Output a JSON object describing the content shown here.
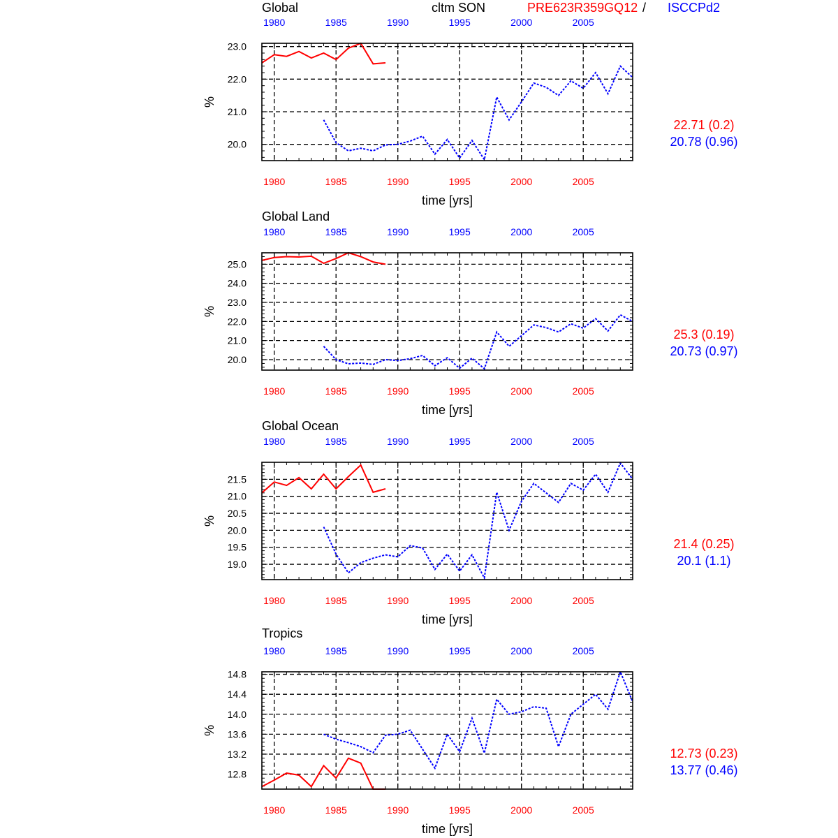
{
  "header": {
    "panel_title_0": "Global",
    "variable": "cltm SON",
    "model_name": "PRE623R359GQ12",
    "separator": "/",
    "obs_name": "ISCCPd2"
  },
  "colors": {
    "model": "#ff0000",
    "obs": "#0000ff",
    "axis": "#000000"
  },
  "xaxis": {
    "label": "time [yrs]",
    "ticks": [
      1980,
      1985,
      1990,
      1995,
      2000,
      2005
    ],
    "range": [
      1979,
      2009
    ]
  },
  "chart_data": [
    {
      "type": "line",
      "title": "Global",
      "ylabel": "%",
      "xlabel": "time [yrs]",
      "ylim": [
        19.5,
        23.1
      ],
      "yticks": [
        20.0,
        21.0,
        22.0,
        23.0
      ],
      "ytick_labels": [
        "20.0",
        "21.0",
        "22.0",
        "23.0"
      ],
      "grid": true,
      "series": [
        {
          "name": "PRE623R359GQ12",
          "style": "solid",
          "color": "#ff0000",
          "x": [
            1979,
            1980,
            1981,
            1982,
            1983,
            1984,
            1985,
            1986,
            1987,
            1988,
            1989
          ],
          "values": [
            22.5,
            22.75,
            22.7,
            22.85,
            22.65,
            22.8,
            22.6,
            22.95,
            23.1,
            22.47,
            22.5
          ]
        },
        {
          "name": "ISCCPd2",
          "style": "dashed",
          "color": "#0000ff",
          "x": [
            1984,
            1985,
            1986,
            1987,
            1988,
            1989,
            1990,
            1991,
            1992,
            1993,
            1994,
            1995,
            1996,
            1997,
            1998,
            1999,
            2000,
            2001,
            2002,
            2003,
            2004,
            2005,
            2006,
            2007,
            2008,
            2009
          ],
          "values": [
            20.75,
            20.05,
            19.8,
            19.88,
            19.8,
            19.98,
            20.0,
            20.1,
            20.25,
            19.7,
            20.15,
            19.58,
            20.12,
            19.53,
            21.45,
            20.75,
            21.3,
            21.88,
            21.75,
            21.5,
            21.95,
            21.72,
            22.2,
            21.55,
            22.4,
            22.05
          ]
        }
      ],
      "stats": {
        "model": "22.71 (0.2)",
        "obs": "20.78 (0.96)"
      }
    },
    {
      "type": "line",
      "title": "Global Land",
      "ylabel": "%",
      "xlabel": "time [yrs]",
      "ylim": [
        19.45,
        25.6
      ],
      "yticks": [
        20.0,
        21.0,
        22.0,
        23.0,
        24.0,
        25.0
      ],
      "ytick_labels": [
        "20.0",
        "21.0",
        "22.0",
        "23.0",
        "24.0",
        "25.0"
      ],
      "grid": true,
      "series": [
        {
          "name": "PRE623R359GQ12",
          "style": "solid",
          "color": "#ff0000",
          "x": [
            1979,
            1980,
            1981,
            1982,
            1983,
            1984,
            1985,
            1986,
            1987,
            1988,
            1989
          ],
          "values": [
            25.2,
            25.35,
            25.4,
            25.38,
            25.42,
            25.05,
            25.3,
            25.6,
            25.4,
            25.12,
            25.0
          ]
        },
        {
          "name": "ISCCPd2",
          "style": "dashed",
          "color": "#0000ff",
          "x": [
            1984,
            1985,
            1986,
            1987,
            1988,
            1989,
            1990,
            1991,
            1992,
            1993,
            1994,
            1995,
            1996,
            1997,
            1998,
            1999,
            2000,
            2001,
            2002,
            2003,
            2004,
            2005,
            2006,
            2007,
            2008,
            2009
          ],
          "values": [
            20.7,
            20.0,
            19.78,
            19.82,
            19.75,
            20.0,
            19.95,
            20.05,
            20.22,
            19.68,
            20.1,
            19.55,
            20.08,
            19.52,
            21.45,
            20.7,
            21.25,
            21.82,
            21.68,
            21.45,
            21.88,
            21.65,
            22.15,
            21.5,
            22.35,
            22.0
          ]
        }
      ],
      "stats": {
        "model": "25.3 (0.19)",
        "obs": "20.73 (0.97)"
      }
    },
    {
      "type": "line",
      "title": "Global Ocean",
      "ylabel": "%",
      "xlabel": "time [yrs]",
      "ylim": [
        18.55,
        22.0
      ],
      "yticks": [
        19.0,
        19.5,
        20.0,
        20.5,
        21.0,
        21.5
      ],
      "ytick_labels": [
        "19.0",
        "19.5",
        "20.0",
        "20.5",
        "21.0",
        "21.5"
      ],
      "grid": true,
      "series": [
        {
          "name": "PRE623R359GQ12",
          "style": "solid",
          "color": "#ff0000",
          "x": [
            1979,
            1980,
            1981,
            1982,
            1983,
            1984,
            1985,
            1986,
            1987,
            1988,
            1989
          ],
          "values": [
            21.1,
            21.42,
            21.32,
            21.55,
            21.22,
            21.65,
            21.22,
            21.58,
            21.92,
            21.12,
            21.22
          ]
        },
        {
          "name": "ISCCPd2",
          "style": "dashed",
          "color": "#0000ff",
          "x": [
            1984,
            1985,
            1986,
            1987,
            1988,
            1989,
            1990,
            1991,
            1992,
            1993,
            1994,
            1995,
            1996,
            1997,
            1998,
            1999,
            2000,
            2001,
            2002,
            2003,
            2004,
            2005,
            2006,
            2007,
            2008,
            2009
          ],
          "values": [
            20.1,
            19.3,
            18.75,
            19.05,
            19.18,
            19.28,
            19.22,
            19.55,
            19.48,
            18.85,
            19.3,
            18.8,
            19.28,
            18.6,
            21.12,
            20.0,
            20.85,
            21.38,
            21.1,
            20.82,
            21.38,
            21.18,
            21.65,
            21.12,
            21.98,
            21.5
          ]
        }
      ],
      "stats": {
        "model": "21.4 (0.25)",
        "obs": "20.1 (1.1)"
      }
    },
    {
      "type": "line",
      "title": "Tropics",
      "ylabel": "%",
      "xlabel": "time [yrs]",
      "ylim": [
        12.5,
        14.85
      ],
      "yticks": [
        12.8,
        13.2,
        13.6,
        14.0,
        14.4,
        14.8
      ],
      "ytick_labels": [
        "12.8",
        "13.2",
        "13.6",
        "14.0",
        "14.4",
        "14.8"
      ],
      "grid": true,
      "series": [
        {
          "name": "PRE623R359GQ12",
          "style": "solid",
          "color": "#ff0000",
          "x": [
            1979,
            1980,
            1981,
            1982,
            1983,
            1984,
            1985,
            1986,
            1987,
            1988,
            1989
          ],
          "values": [
            12.55,
            12.68,
            12.82,
            12.78,
            12.55,
            12.97,
            12.72,
            13.12,
            13.02,
            12.5,
            12.5
          ]
        },
        {
          "name": "ISCCPd2",
          "style": "dashed",
          "color": "#0000ff",
          "x": [
            1984,
            1985,
            1986,
            1987,
            1988,
            1989,
            1990,
            1991,
            1992,
            1993,
            1994,
            1995,
            1996,
            1997,
            1998,
            1999,
            2000,
            2001,
            2002,
            2003,
            2004,
            2005,
            2006,
            2007,
            2008,
            2009
          ],
          "values": [
            13.6,
            13.5,
            13.43,
            13.35,
            13.23,
            13.58,
            13.6,
            13.68,
            13.3,
            12.92,
            13.6,
            13.25,
            13.92,
            13.22,
            14.3,
            14.0,
            14.05,
            14.15,
            14.12,
            13.35,
            14.0,
            14.2,
            14.4,
            14.1,
            14.85,
            14.25
          ]
        }
      ],
      "stats": {
        "model": "12.73 (0.23)",
        "obs": "13.77 (0.46)"
      }
    }
  ]
}
